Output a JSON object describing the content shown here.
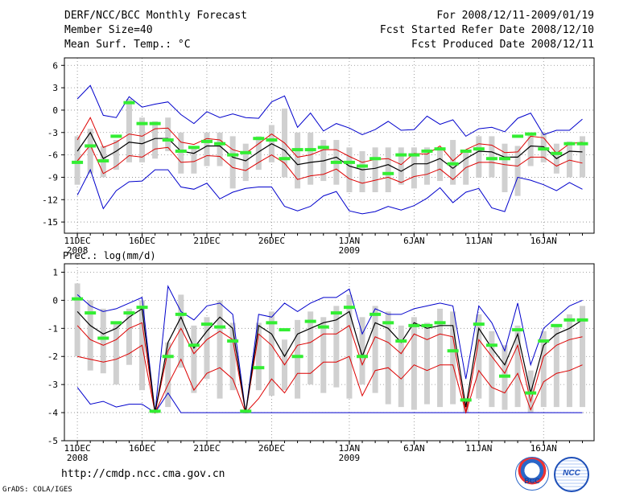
{
  "header": {
    "title": "DERF/NCC/BCC Monthly Forecast",
    "member_size": "Member Size=40",
    "variable": "Mean Surf. Temp.: °C",
    "period": "For 2008/12/11-2009/01/19",
    "started": "Fcst Started Refer Date 2008/12/10",
    "produced": "Fcst Produced Date 2008/12/11"
  },
  "footer": {
    "url": "http://cmdp.ncc.cma.gov.cn",
    "credit": "GrADS: COLA/IGES",
    "logo_bcc": "BCC",
    "logo_ncc": "NCC"
  },
  "colors": {
    "box": "#d0d0d0",
    "mean": "#000000",
    "pctl": "#dd0000",
    "envelope": "#0000cc",
    "obs": "#33ee33",
    "grid": "#888888"
  },
  "chart_data": [
    {
      "type": "box",
      "label": "temp",
      "title": "Mean Surf. Temp.: °C",
      "ylabel": "°C",
      "ylim": [
        -16.5,
        7
      ],
      "yticks": [
        6,
        3,
        0,
        -3,
        -6,
        -9,
        -12,
        -15
      ],
      "xticks": [
        {
          "day": 1,
          "label": "11DEC",
          "sub": "2008"
        },
        {
          "day": 6,
          "label": "16DEC",
          "sub": ""
        },
        {
          "day": 11,
          "label": "21DEC",
          "sub": ""
        },
        {
          "day": 16,
          "label": "26DEC",
          "sub": ""
        },
        {
          "day": 22,
          "label": "1JAN",
          "sub": "2009"
        },
        {
          "day": 27,
          "label": "6JAN",
          "sub": ""
        },
        {
          "day": 32,
          "label": "11JAN",
          "sub": ""
        },
        {
          "day": 37,
          "label": "16JAN",
          "sub": ""
        }
      ],
      "days": [
        1,
        2,
        3,
        4,
        5,
        6,
        7,
        8,
        9,
        10,
        11,
        12,
        13,
        14,
        15,
        16,
        17,
        18,
        19,
        20,
        21,
        22,
        23,
        24,
        25,
        26,
        27,
        28,
        29,
        30,
        31,
        32,
        33,
        34,
        35,
        36,
        37,
        38,
        39,
        40
      ],
      "box_top": [
        -3.5,
        -2.5,
        -4.8,
        -4,
        1.5,
        -1,
        -1.5,
        -1,
        -3,
        -5,
        -3,
        -3,
        -3.5,
        -4.5,
        -3.5,
        -2,
        0.2,
        -3,
        -3,
        -4,
        -4,
        -5,
        -5.5,
        -5,
        -5,
        -5,
        -5,
        -5,
        -5,
        -4,
        -5.5,
        -3.5,
        -3.5,
        -4.5,
        -4.8,
        -3,
        -3,
        -4.5,
        -4.2,
        -3.5
      ],
      "box_bottom": [
        -10,
        -8.5,
        -9,
        -8,
        -7,
        -7,
        -6.5,
        -5.5,
        -8.5,
        -8.5,
        -7.5,
        -7.5,
        -10.5,
        -9.5,
        -8,
        -7,
        -9,
        -10.5,
        -10,
        -9.5,
        -10,
        -11,
        -11,
        -11,
        -11,
        -10,
        -10.5,
        -10,
        -9.5,
        -10,
        -10,
        -9,
        -9,
        -11,
        -11.5,
        -7.5,
        -7,
        -8.5,
        -9,
        -9
      ],
      "mean": [
        -5.5,
        -3,
        -6.5,
        -5.5,
        -4.3,
        -4.5,
        -3.8,
        -3.8,
        -5.5,
        -5.8,
        -4.8,
        -4.8,
        -6.3,
        -6.8,
        -5.6,
        -4.5,
        -5.4,
        -7.3,
        -7,
        -6.8,
        -6.3,
        -7.5,
        -8,
        -7.8,
        -7.3,
        -8.2,
        -7.2,
        -7.2,
        -6.5,
        -7.8,
        -6.5,
        -5.5,
        -5.6,
        -6.3,
        -6.3,
        -4.8,
        -4.9,
        -6.5,
        -5.5,
        -5.6
      ],
      "p_high": [
        -4,
        -1,
        -5,
        -4.3,
        -3.2,
        -3.5,
        -2.5,
        -2.4,
        -4.3,
        -4.6,
        -3.8,
        -4,
        -5.3,
        -5.8,
        -4.5,
        -3.2,
        -4.4,
        -6.3,
        -6,
        -5.3,
        -5.3,
        -6.2,
        -7,
        -6.6,
        -6.5,
        -7.3,
        -5.8,
        -5.9,
        -4.8,
        -6.8,
        -5.3,
        -4.5,
        -4.7,
        -5.7,
        -5.6,
        -3.5,
        -3.7,
        -5.8,
        -4.5,
        -4.3
      ],
      "p_low": [
        -6.8,
        -4.7,
        -8.5,
        -7.5,
        -6.1,
        -6.3,
        -5.2,
        -5,
        -7,
        -6.9,
        -6.1,
        -6.2,
        -7.7,
        -8.1,
        -7,
        -6,
        -7.1,
        -9.3,
        -8.8,
        -8.6,
        -7.9,
        -9.2,
        -9.8,
        -9.4,
        -9,
        -9.7,
        -8.9,
        -8.6,
        -7.9,
        -9.3,
        -7.7,
        -7,
        -7,
        -7.3,
        -7.5,
        -6.3,
        -6.3,
        -7.5,
        -6.7,
        -7.1
      ],
      "env_high": [
        1.5,
        3.3,
        -0.7,
        -1,
        1.8,
        0.4,
        0.8,
        1.1,
        -0.6,
        -1.8,
        -0.2,
        -1,
        -0.5,
        -1,
        -1.1,
        1.1,
        1.9,
        -2.3,
        -0.4,
        -2.8,
        -1.8,
        -2.4,
        -3.3,
        -2.6,
        -1.5,
        -2.7,
        -2.6,
        -0.8,
        -1.9,
        -1.3,
        -3.5,
        -2.5,
        -2.3,
        -2.9,
        -1.1,
        -0.4,
        -3.3,
        -2.7,
        -2.7,
        -1.2
      ],
      "env_low": [
        -11.4,
        -8,
        -13.2,
        -10.8,
        -9.6,
        -9.5,
        -8,
        -8,
        -10.3,
        -10.6,
        -9.8,
        -11.9,
        -11,
        -10.5,
        -10.3,
        -10.3,
        -12.9,
        -13.5,
        -12.9,
        -11.5,
        -10.9,
        -13.5,
        -13.9,
        -13.6,
        -12.9,
        -13.4,
        -12.8,
        -11.8,
        -10.4,
        -12.4,
        -11,
        -10.5,
        -13.1,
        -13.6,
        -9,
        -9.4,
        -10,
        -10.8,
        -9.7,
        -10.6
      ],
      "obs": [
        -7,
        -4.8,
        -6.8,
        -3.5,
        1,
        -1.8,
        -1.8,
        -4,
        -5.5,
        -5,
        -4.2,
        -4.5,
        -6,
        -5.7,
        -3.8,
        -4,
        -6.5,
        -5.3,
        -5.3,
        -5,
        -7,
        -7,
        -7.5,
        -6.5,
        -8.5,
        -6,
        -6,
        -5.5,
        -5.2,
        -7.2,
        -5.5,
        -5.2,
        -6.5,
        -6.5,
        -3.5,
        -3.2,
        -5.2,
        -5.8,
        -4.5,
        -4.5
      ]
    },
    {
      "type": "box",
      "label": "prec",
      "title": "Prec.: log(mm/d)",
      "ylabel": "log(mm/d)",
      "ylim": [
        -5,
        1.3
      ],
      "yticks": [
        1,
        0,
        -1,
        -2,
        -3,
        -4,
        -5
      ],
      "xticks": [
        {
          "day": 1,
          "label": "11DEC",
          "sub": "2008"
        },
        {
          "day": 6,
          "label": "16DEC",
          "sub": ""
        },
        {
          "day": 11,
          "label": "21DEC",
          "sub": ""
        },
        {
          "day": 16,
          "label": "26DEC",
          "sub": ""
        },
        {
          "day": 22,
          "label": "1JAN",
          "sub": "2009"
        },
        {
          "day": 27,
          "label": "6JAN",
          "sub": ""
        },
        {
          "day": 32,
          "label": "11JAN",
          "sub": ""
        },
        {
          "day": 37,
          "label": "16JAN",
          "sub": ""
        }
      ],
      "days": [
        1,
        2,
        3,
        4,
        5,
        6,
        7,
        8,
        9,
        10,
        11,
        12,
        13,
        14,
        15,
        16,
        17,
        18,
        19,
        20,
        21,
        22,
        23,
        24,
        25,
        26,
        27,
        28,
        29,
        30,
        31,
        32,
        33,
        34,
        35,
        36,
        37,
        38,
        39,
        40
      ],
      "box_top": [
        0.6,
        0,
        -0.3,
        -0.8,
        -0.3,
        0,
        -4,
        -1.5,
        0.2,
        -0.9,
        -0.6,
        0,
        -0.8,
        -4,
        -0.8,
        -0.4,
        -1.4,
        -0.7,
        -0.4,
        -0.6,
        -0.2,
        0.2,
        -0.6,
        -0.2,
        -0.4,
        -0.9,
        -0.6,
        -0.8,
        -0.3,
        -0.4,
        -3.5,
        -0.5,
        -1.1,
        -1.6,
        -0.9,
        -2.5,
        -1.1,
        -0.9,
        -0.5,
        -0.2
      ],
      "box_bottom": [
        -2,
        -2.5,
        -2.6,
        -3,
        -2.3,
        -3.2,
        -4,
        -3.8,
        -2.4,
        -3.3,
        -2.8,
        -3.5,
        -3.2,
        -4,
        -3.2,
        -3.4,
        -3.2,
        -3.5,
        -3,
        -3.3,
        -3.1,
        -3.5,
        -3,
        -3.3,
        -3.7,
        -3.8,
        -3.9,
        -3.7,
        -3.8,
        -3.7,
        -4,
        -3.5,
        -3.8,
        -3.9,
        -3.8,
        -4,
        -3.8,
        -3.8,
        -3.8,
        -3.8
      ],
      "mean": [
        -0.4,
        -0.9,
        -1.2,
        -1,
        -0.6,
        -0.3,
        -4,
        -1.5,
        -0.6,
        -1.7,
        -1.1,
        -0.6,
        -1,
        -4,
        -0.9,
        -1.2,
        -2,
        -1.2,
        -1,
        -0.8,
        -0.7,
        -0.4,
        -2,
        -0.8,
        -1,
        -1.5,
        -0.8,
        -1,
        -0.9,
        -0.9,
        -3.8,
        -1,
        -1.7,
        -2.3,
        -1.2,
        -3.3,
        -1.6,
        -1.2,
        -1,
        -0.7
      ],
      "p_high": [
        -0.9,
        -1.4,
        -1.6,
        -1.4,
        -1,
        -0.8,
        -4,
        -1.8,
        -1,
        -1.9,
        -1.4,
        -1.1,
        -1.4,
        -4,
        -1.2,
        -1.6,
        -2.3,
        -1.6,
        -1.5,
        -1.2,
        -1.2,
        -0.9,
        -2.3,
        -1.3,
        -1.5,
        -1.9,
        -1.2,
        -1.4,
        -1.2,
        -1.3,
        -4,
        -1.4,
        -2,
        -2.6,
        -1.6,
        -3.6,
        -2,
        -1.6,
        -1.4,
        -1.3
      ],
      "p_low": [
        -2,
        -2.1,
        -2.2,
        -2.1,
        -1.9,
        -1.6,
        -4,
        -3,
        -2.1,
        -3.2,
        -2.6,
        -2.4,
        -2.8,
        -4,
        -3.5,
        -2.8,
        -3.3,
        -2.6,
        -2.6,
        -2.2,
        -2.2,
        -2,
        -3.4,
        -2.5,
        -2.4,
        -2.8,
        -2.3,
        -2.5,
        -2.3,
        -2.3,
        -4,
        -2.5,
        -3.1,
        -3.3,
        -2.6,
        -3.9,
        -2.9,
        -2.6,
        -2.5,
        -2.3
      ],
      "env_high": [
        0.2,
        -0.2,
        -0.4,
        -0.3,
        -0.1,
        0.1,
        -4,
        0.5,
        -0.4,
        -0.7,
        -0.2,
        -0.1,
        -0.5,
        -4,
        -0.5,
        -0.6,
        -0.1,
        -0.4,
        -0.1,
        0.1,
        0.1,
        0.4,
        -1.2,
        -0.3,
        -0.5,
        -0.5,
        -0.3,
        -0.2,
        -0.1,
        -0.2,
        -2.8,
        -0.2,
        -0.8,
        -1.8,
        -0.1,
        -2.3,
        -1,
        -0.6,
        -0.2,
        0
      ],
      "env_low": [
        -3.1,
        -3.7,
        -3.6,
        -3.8,
        -3.7,
        -3.7,
        -4,
        -3.3,
        -4,
        -4,
        -4,
        -4,
        -4,
        -4,
        -4,
        -4,
        -4,
        -4,
        -4,
        -4,
        -4,
        -4,
        -4,
        -4,
        -4,
        -4,
        -4,
        -4,
        -4,
        -4,
        -4,
        -4,
        -4,
        -4,
        -4,
        -4,
        -4,
        -4,
        -4,
        -4
      ],
      "obs": [
        0.05,
        -0.45,
        -1.35,
        -0.8,
        -0.45,
        -0.25,
        -3.95,
        -2,
        -0.5,
        -1.6,
        -0.85,
        -0.95,
        -1.45,
        -3.95,
        -2.4,
        -0.8,
        -1.05,
        -2,
        -0.75,
        -0.95,
        -0.45,
        -0.25,
        -2,
        -0.5,
        -0.8,
        -1.45,
        -0.9,
        -0.9,
        -0.8,
        -1.8,
        -3.55,
        -0.85,
        -1.6,
        -2.7,
        -1.05,
        -3.3,
        -1.45,
        -0.9,
        -0.7,
        -0.7
      ]
    }
  ]
}
